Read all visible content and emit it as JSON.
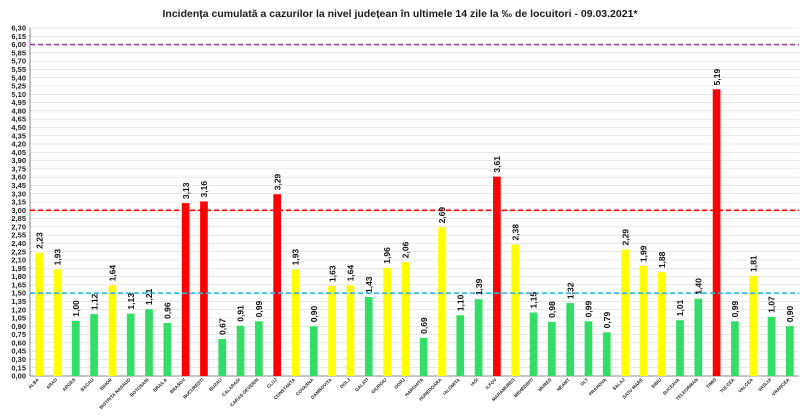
{
  "chart_data": {
    "type": "bar",
    "title": "Incidența cumulată a cazurilor la nivel județean în ultimele 14 zile la ‰ de locuitori - 09.03.2021*",
    "xlabel": "",
    "ylabel": "",
    "ylim": [
      0,
      6.3
    ],
    "ytick_step": 0.15,
    "grid": true,
    "legend": "none",
    "categories": [
      "ALBA",
      "ARAD",
      "ARGES",
      "BACAU",
      "BIHOR",
      "BISTRITA NASAUD",
      "BOTOSANI",
      "BRAILA",
      "BRASOV",
      "BUCURESTI",
      "BUZAU",
      "CALARASI",
      "CARAS-SEVERIN",
      "CLUJ",
      "CONSTANTA",
      "COVASNA",
      "DAMBOVITA",
      "DOLJ",
      "GALATI",
      "GIURGIU",
      "GORJ",
      "HARGHITA",
      "HUNEDOARA",
      "IALOMITA",
      "IASI",
      "ILFOV",
      "MARAMURES",
      "MEHEDINTI",
      "MURES",
      "NEAMT",
      "OLT",
      "PRAHOVA",
      "SALAJ",
      "SATU MARE",
      "SIBIU",
      "SUCEAVA",
      "TELEORMAN",
      "TIMIS",
      "TULCEA",
      "VALCEA",
      "VASLUI",
      "VRANCEA"
    ],
    "values": [
      2.23,
      1.93,
      1.0,
      1.12,
      1.64,
      1.13,
      1.21,
      0.96,
      3.13,
      3.16,
      0.67,
      0.91,
      0.99,
      3.29,
      1.93,
      0.9,
      1.63,
      1.64,
      1.43,
      1.96,
      2.06,
      0.69,
      2.69,
      1.1,
      1.39,
      3.61,
      2.38,
      1.15,
      0.98,
      1.32,
      0.99,
      0.79,
      2.29,
      1.99,
      1.88,
      1.01,
      1.4,
      5.19,
      0.99,
      1.81,
      1.07,
      0.9
    ],
    "bar_colors": [
      "#ffff00",
      "#ffff00",
      "#33dd66",
      "#33dd66",
      "#ffff00",
      "#33dd66",
      "#33dd66",
      "#33dd66",
      "#ff0000",
      "#ff0000",
      "#33dd66",
      "#33dd66",
      "#33dd66",
      "#ff0000",
      "#ffff00",
      "#33dd66",
      "#ffff00",
      "#ffff00",
      "#33dd66",
      "#ffff00",
      "#ffff00",
      "#33dd66",
      "#ffff00",
      "#33dd66",
      "#33dd66",
      "#ff0000",
      "#ffff00",
      "#33dd66",
      "#33dd66",
      "#33dd66",
      "#33dd66",
      "#33dd66",
      "#ffff00",
      "#ffff00",
      "#ffff00",
      "#33dd66",
      "#33dd66",
      "#ff0000",
      "#33dd66",
      "#ffff00",
      "#33dd66",
      "#33dd66"
    ],
    "reference_lines": [
      {
        "value": 6.0,
        "color": "#a040a0"
      },
      {
        "value": 3.0,
        "color": "#ff0000"
      },
      {
        "value": 1.5,
        "color": "#33b5e5"
      }
    ]
  }
}
